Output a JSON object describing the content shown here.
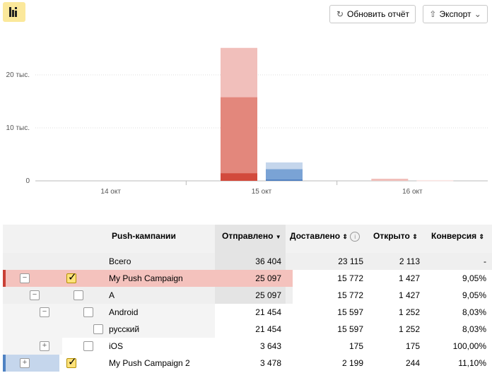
{
  "toolbar": {
    "refresh_label": "Обновить отчёт",
    "export_label": "Экспорт"
  },
  "chart_data": {
    "type": "bar",
    "categories": [
      "14 окт",
      "15 окт",
      "16 окт"
    ],
    "y_ticks": [
      "0",
      "10 тыс.",
      "20 тыс."
    ],
    "ylim": [
      0,
      28000
    ],
    "stacks": [
      {
        "category": "15 окт",
        "group": "campaign1",
        "color_base": "#c94035",
        "segments": [
          {
            "label": "Отправлено",
            "value": 25097,
            "color": "#f1bfbb"
          },
          {
            "label": "Доставлено",
            "value": 15772,
            "color": "#e3877c"
          },
          {
            "label": "Открыто",
            "value": 1427,
            "color": "#d24a3c"
          }
        ]
      },
      {
        "category": "15 окт",
        "group": "campaign2",
        "color_base": "#4f82c3",
        "segments": [
          {
            "label": "Отправлено",
            "value": 3478,
            "color": "#c5d6ec"
          },
          {
            "label": "Доставлено",
            "value": 2199,
            "color": "#7aa3d5"
          },
          {
            "label": "Открыто",
            "value": 244,
            "color": "#4f7fc0"
          }
        ]
      },
      {
        "category": "16 окт",
        "group": "campaign1",
        "color_base": "#c94035",
        "segments": [
          {
            "label": "Отправлено",
            "value": 400,
            "color": "#f1bfbb"
          }
        ]
      },
      {
        "category": "16 окт",
        "group": "campaign2",
        "color_base": "#4f82c3",
        "segments": [
          {
            "label": "Отправлено",
            "value": 150,
            "color": "#fbe4e2"
          }
        ]
      }
    ]
  },
  "table": {
    "headers": {
      "name": "Push-кампании",
      "sent": "Отправлено",
      "delivered": "Доставлено",
      "opened": "Открыто",
      "conversion": "Конверсия"
    },
    "rows": [
      {
        "name": "Всего",
        "sent": "36 404",
        "delivered": "23 115",
        "opened": "2 113",
        "conversion": "-"
      },
      {
        "name": "My Push Campaign",
        "sent": "25 097",
        "delivered": "15 772",
        "opened": "1 427",
        "conversion": "9,05%",
        "toggle": "−"
      },
      {
        "name": "A",
        "sent": "25 097",
        "delivered": "15 772",
        "opened": "1 427",
        "conversion": "9,05%",
        "toggle": "−"
      },
      {
        "name": "Android",
        "sent": "21 454",
        "delivered": "15 597",
        "opened": "1 252",
        "conversion": "8,03%",
        "toggle": "−"
      },
      {
        "name": "русский",
        "sent": "21 454",
        "delivered": "15 597",
        "opened": "1 252",
        "conversion": "8,03%"
      },
      {
        "name": "iOS",
        "sent": "3 643",
        "delivered": "175",
        "opened": "175",
        "conversion": "100,00%",
        "toggle": "+"
      },
      {
        "name": "My Push Campaign 2",
        "sent": "3 478",
        "delivered": "2 199",
        "opened": "244",
        "conversion": "11,10%",
        "toggle": "+"
      }
    ]
  },
  "colors": {
    "accent_yellow": "#fbe89b",
    "campaign1": "#c94035",
    "campaign2": "#4f82c3"
  }
}
